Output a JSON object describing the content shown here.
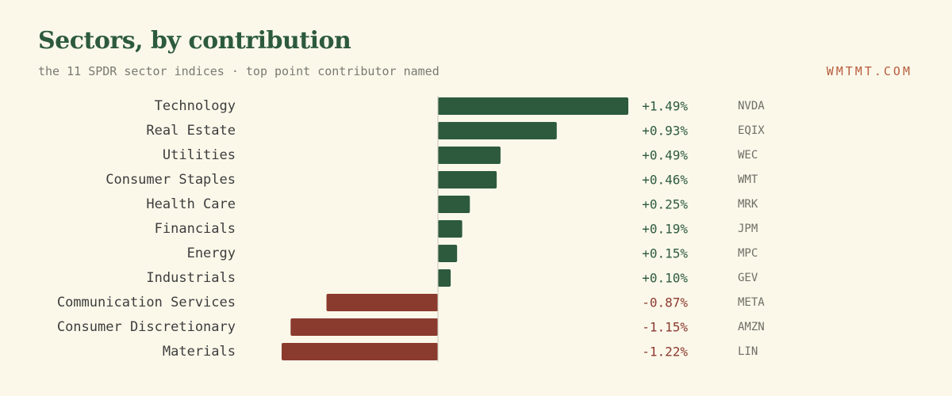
{
  "header": {
    "title": "Sectors, by contribution",
    "subtitle": "the 11 SPDR sector indices · top point contributor named",
    "brand": "WMTMT.COM"
  },
  "colors": {
    "positive": "#2d5a3d",
    "negative": "#8b3a2e",
    "axis": "#c9c6b6",
    "background": "#fbf8ea"
  },
  "chart_data": {
    "type": "bar",
    "orientation": "horizontal",
    "categories": [
      "Technology",
      "Real Estate",
      "Utilities",
      "Consumer Staples",
      "Health Care",
      "Financials",
      "Energy",
      "Industrials",
      "Communication Services",
      "Consumer Discretionary",
      "Materials"
    ],
    "values": [
      1.49,
      0.93,
      0.49,
      0.46,
      0.25,
      0.19,
      0.15,
      0.1,
      -0.87,
      -1.15,
      -1.22
    ],
    "value_labels": [
      "+1.49%",
      "+0.93%",
      "+0.49%",
      "+0.46%",
      "+0.25%",
      "+0.19%",
      "+0.15%",
      "+0.10%",
      "-0.87%",
      "-1.15%",
      "-1.22%"
    ],
    "top_contributors": [
      "NVDA",
      "EQIX",
      "WEC",
      "WMT",
      "MRK",
      "JPM",
      "MPC",
      "GEV",
      "META",
      "AMZN",
      "LIN"
    ],
    "xlim": [
      -1.22,
      1.49
    ],
    "grid": false,
    "legend": "none"
  }
}
